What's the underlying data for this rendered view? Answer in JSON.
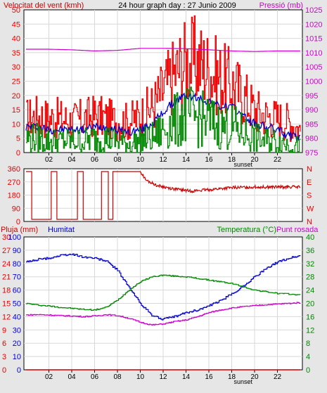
{
  "header": {
    "wind_label": "Velocitat del vent (kmh)",
    "title": "24 hour graph day : 27 Junio 2009",
    "pressure_label": "Pressió (mb)"
  },
  "colors": {
    "red": "#ee0000",
    "blue": "#0000cc",
    "green": "#008800",
    "magenta": "#cc00cc",
    "dark_red": "#cc0000",
    "frame_bg": "#e6e6e6",
    "plot_bg": "#ffffff",
    "grid": "#d8d8d8"
  },
  "chart_data": [
    {
      "id": "wind-pressure",
      "type": "line",
      "x_ticks": [
        "02",
        "04",
        "06",
        "08",
        "10",
        "12",
        "14",
        "16",
        "18",
        "20",
        "22"
      ],
      "x_marker": "sunset",
      "left_axis": {
        "label": "Velocitat del vent (kmh)",
        "ticks": [
          "0",
          "5",
          "10",
          "15",
          "20",
          "25",
          "30",
          "35",
          "40",
          "45",
          "50"
        ],
        "range": [
          0,
          50
        ]
      },
      "right_axis": {
        "label": "Pressió (mb)",
        "ticks": [
          "975",
          "980",
          "985",
          "990",
          "995",
          "1000",
          "1005",
          "1010",
          "1015",
          "1020",
          "1025"
        ],
        "range": [
          975,
          1025
        ]
      },
      "series": [
        {
          "color": "red",
          "axis": "left",
          "style": "gust",
          "x": [
            0,
            1,
            2,
            3,
            4,
            5,
            6,
            7,
            8,
            9,
            10,
            11,
            12,
            13,
            14,
            15,
            16,
            17,
            18,
            19,
            20,
            21,
            22,
            23,
            24
          ],
          "y": [
            12,
            13,
            12,
            12,
            11,
            12,
            13,
            12,
            11,
            11,
            13,
            16,
            22,
            28,
            32,
            32,
            29,
            26,
            24,
            20,
            15,
            13,
            12,
            11,
            8
          ]
        },
        {
          "color": "blue",
          "axis": "left",
          "style": "average",
          "x": [
            0,
            1,
            2,
            3,
            4,
            5,
            6,
            7,
            8,
            9,
            10,
            11,
            12,
            13,
            14,
            15,
            16,
            17,
            18,
            19,
            20,
            21,
            22,
            23,
            24
          ],
          "y": [
            9,
            9,
            8,
            8,
            8,
            8,
            9,
            9,
            8,
            7,
            8,
            10,
            14,
            18,
            20,
            19,
            18,
            16,
            16,
            13,
            10,
            9,
            8,
            6,
            5
          ]
        },
        {
          "color": "green",
          "axis": "left",
          "style": "speed",
          "x": [
            0,
            1,
            2,
            3,
            4,
            5,
            6,
            7,
            8,
            9,
            10,
            11,
            12,
            13,
            14,
            15,
            16,
            17,
            18,
            19,
            20,
            21,
            22,
            23,
            24
          ],
          "y": [
            5,
            5,
            4,
            4,
            4,
            4,
            5,
            5,
            4,
            3,
            4,
            5,
            8,
            11,
            13,
            12,
            11,
            9,
            9,
            7,
            5,
            4,
            4,
            3,
            2
          ]
        },
        {
          "color": "magenta",
          "axis": "right",
          "style": "plain",
          "x": [
            0,
            2,
            4,
            6,
            8,
            10,
            12,
            14,
            16,
            18,
            20,
            22,
            24
          ],
          "y": [
            1011.2,
            1011.2,
            1011.0,
            1010.6,
            1010.8,
            1011.5,
            1011.5,
            1011.4,
            1011.0,
            1010.6,
            1010.4,
            1010.6,
            1010.6
          ]
        }
      ]
    },
    {
      "id": "wind-direction",
      "type": "line",
      "x_ticks": [],
      "left_axis": {
        "ticks": [
          "0",
          "90",
          "180",
          "270",
          "360"
        ],
        "range": [
          0,
          360
        ]
      },
      "right_axis": {
        "ticks": [
          "N",
          "W",
          "S",
          "E",
          "N"
        ]
      },
      "series": [
        {
          "color": "dark_red",
          "axis": "left",
          "style": "direction",
          "x": [
            0,
            0.5,
            0.5,
            2.2,
            2.2,
            2.7,
            2.7,
            4.5,
            4.5,
            5.0,
            5.0,
            6.6,
            6.6,
            7.2,
            7.2,
            7.6,
            7.6,
            10.0,
            10.5,
            11.5,
            13,
            14.5,
            16,
            18,
            20,
            22,
            24
          ],
          "y": [
            355,
            355,
            0,
            0,
            355,
            355,
            0,
            0,
            355,
            355,
            0,
            0,
            355,
            355,
            0,
            0,
            355,
            355,
            290,
            250,
            225,
            210,
            220,
            235,
            240,
            240,
            240
          ]
        }
      ]
    },
    {
      "id": "rain-humidity-temperature",
      "type": "line",
      "x_ticks": [
        "02",
        "04",
        "06",
        "08",
        "10",
        "12",
        "14",
        "16",
        "18",
        "20",
        "22"
      ],
      "x_marker": "sunset",
      "legend": {
        "rain": "Pluja (mm)",
        "humidity": "Humitat",
        "temperature": "Temperatura (°C)",
        "dewpoint": "Punt rosada"
      },
      "rain_axis": {
        "label": "Pluja (mm)",
        "ticks": [
          "0",
          "3",
          "6",
          "9",
          "12",
          "15",
          "18",
          "21",
          "24",
          "27",
          "30"
        ],
        "range": [
          0,
          30
        ]
      },
      "humidity_axis": {
        "label": "Humitat",
        "ticks": [
          "0",
          "10",
          "20",
          "30",
          "40",
          "50",
          "60",
          "70",
          "80",
          "90",
          "100"
        ],
        "range": [
          0,
          100
        ]
      },
      "temperature_axis": {
        "label": "Temperatura (°C)",
        "ticks": [
          "0",
          "4",
          "8",
          "12",
          "16",
          "20",
          "24",
          "28",
          "32",
          "36",
          "40"
        ],
        "range": [
          0,
          40
        ]
      },
      "series": [
        {
          "color": "dark_red",
          "axis": "rain",
          "style": "plain",
          "x": [
            0,
            24
          ],
          "y": [
            0,
            0
          ]
        },
        {
          "color": "blue",
          "axis": "humidity",
          "style": "plain",
          "x": [
            0,
            1,
            2,
            3,
            4,
            5,
            6,
            7,
            8,
            9,
            10,
            11,
            12,
            13,
            14,
            15,
            16,
            17,
            18,
            19,
            20,
            21,
            22,
            23,
            24
          ],
          "y": [
            81,
            83,
            84,
            86,
            87,
            85,
            84,
            82,
            75,
            62,
            50,
            41,
            38,
            40,
            43,
            45,
            48,
            52,
            57,
            63,
            70,
            76,
            81,
            84,
            86
          ]
        },
        {
          "color": "green",
          "axis": "temperature",
          "style": "plain",
          "x": [
            0,
            1,
            2,
            3,
            4,
            5,
            6,
            7,
            8,
            9,
            10,
            11,
            12,
            13,
            14,
            15,
            16,
            17,
            18,
            19,
            20,
            21,
            22,
            23,
            24
          ],
          "y": [
            20,
            19.5,
            19.2,
            18.8,
            18.5,
            18.2,
            18.0,
            18.8,
            21,
            24,
            26.5,
            28,
            28.5,
            28.2,
            28,
            27.5,
            27,
            26.5,
            26,
            25,
            24,
            23.5,
            23,
            22.8,
            22.5
          ]
        },
        {
          "color": "magenta",
          "axis": "temperature",
          "style": "plain",
          "x": [
            0,
            1,
            2,
            3,
            4,
            5,
            6,
            7,
            8,
            9,
            10,
            11,
            12,
            13,
            14,
            15,
            16,
            17,
            18,
            19,
            20,
            21,
            22,
            23,
            24
          ],
          "y": [
            16.5,
            16.6,
            16.5,
            16.3,
            16.2,
            16.0,
            16.2,
            16.6,
            16.3,
            15.5,
            14.3,
            13.5,
            13.8,
            14.5,
            15.0,
            16.0,
            17.2,
            18.0,
            18.6,
            19.0,
            19.3,
            19.6,
            19.8,
            20.0,
            20.2
          ]
        }
      ]
    }
  ]
}
